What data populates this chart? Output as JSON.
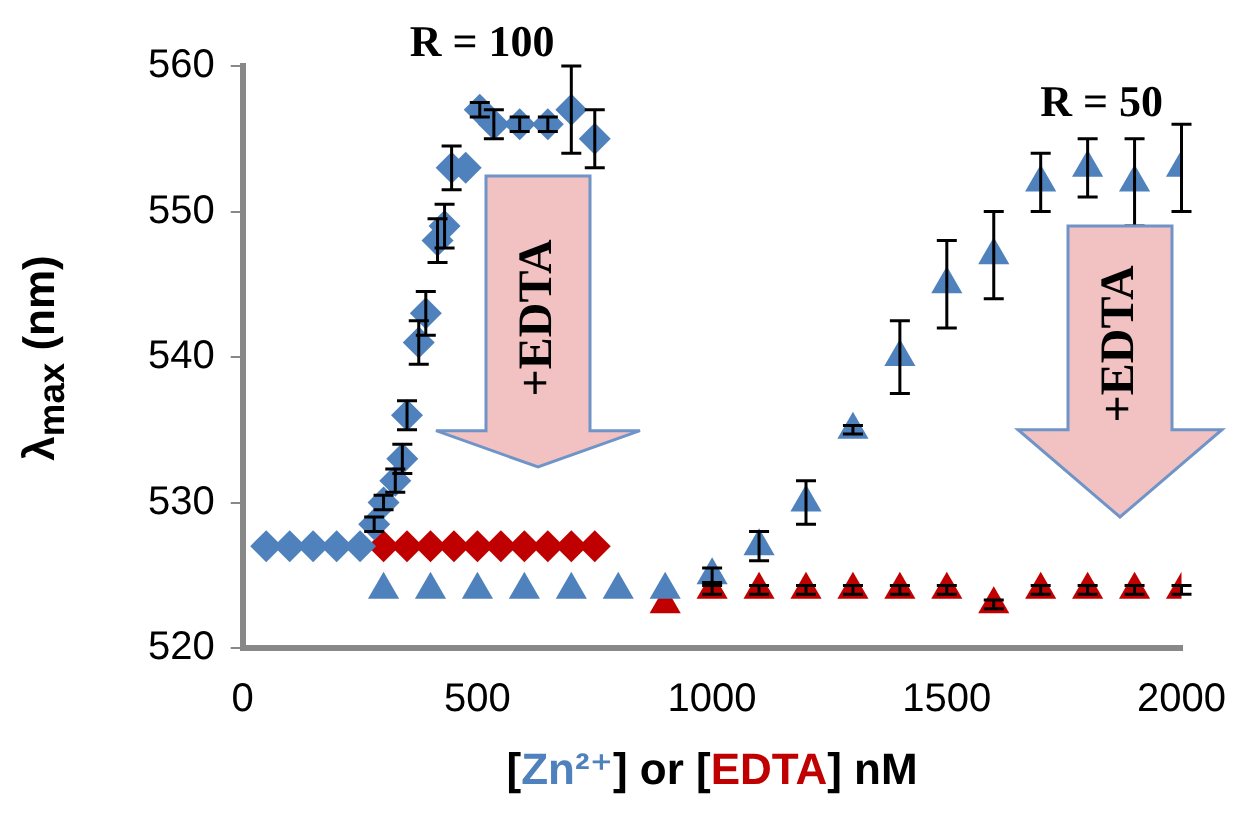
{
  "chart_data": {
    "type": "scatter",
    "xlabel": "[Zn²⁺] or [EDTA] nM",
    "ylabel": "λ$_{max}$ (nm)",
    "xlim": [
      0,
      2000
    ],
    "xticks": [
      0,
      500,
      1000,
      1500,
      2000
    ],
    "ylim": [
      520,
      560
    ],
    "yticks": [
      520,
      530,
      540,
      550,
      560
    ],
    "grid": false,
    "legend": false,
    "annotations": [
      "R = 100",
      "+EDTA",
      "R = 50",
      "+EDTA"
    ],
    "series": [
      {
        "marker": "diamond",
        "color": "#4f81bd",
        "x": [
          50,
          100,
          150,
          200,
          250,
          280,
          300,
          325,
          340,
          350,
          375,
          390,
          415,
          430,
          445,
          475,
          505,
          535,
          590,
          650,
          700,
          750
        ],
        "values": [
          527,
          527,
          527,
          527,
          527,
          528.5,
          530,
          531.5,
          533,
          536,
          541,
          543,
          548,
          549,
          553,
          553,
          557,
          556,
          556,
          556,
          557,
          555
        ],
        "errors": [
          null,
          null,
          null,
          null,
          null,
          0.5,
          0.5,
          0.8,
          1,
          1,
          1.5,
          1.5,
          1.5,
          1.5,
          1.5,
          null,
          0.5,
          1,
          0.5,
          0.5,
          3,
          2
        ]
      },
      {
        "marker": "diamond",
        "color": "#c00000",
        "x": [
          300,
          350,
          400,
          450,
          500,
          550,
          600,
          650,
          700,
          750
        ],
        "values": [
          527,
          527,
          527,
          527,
          527,
          527,
          527,
          527,
          527,
          527
        ]
      },
      {
        "marker": "triangle",
        "color": "#4f81bd",
        "x": [
          300,
          400,
          500,
          600,
          700,
          800,
          900,
          1000,
          1100,
          1200,
          1300,
          1400,
          1500,
          1600,
          1700,
          1800,
          1900,
          2000
        ],
        "values": [
          524,
          524,
          524,
          524,
          524,
          524,
          524,
          525,
          527,
          530,
          535,
          540,
          545,
          547,
          552,
          553,
          552,
          553
        ],
        "errors": [
          null,
          null,
          null,
          null,
          null,
          null,
          null,
          0.5,
          1,
          1.5,
          0.3,
          2.5,
          3,
          3,
          2,
          2,
          3,
          3
        ]
      },
      {
        "marker": "triangle",
        "color": "#c00000",
        "x": [
          900,
          1000,
          1100,
          1200,
          1300,
          1400,
          1500,
          1600,
          1700,
          1800,
          1900,
          2000
        ],
        "values": [
          523,
          524,
          524,
          524,
          524,
          524,
          524,
          523,
          524,
          524,
          524,
          524
        ],
        "errors": [
          null,
          0.3,
          0.3,
          0.3,
          0.3,
          0.3,
          0.3,
          0.3,
          0.3,
          0.3,
          0.3,
          0.3
        ]
      }
    ]
  }
}
